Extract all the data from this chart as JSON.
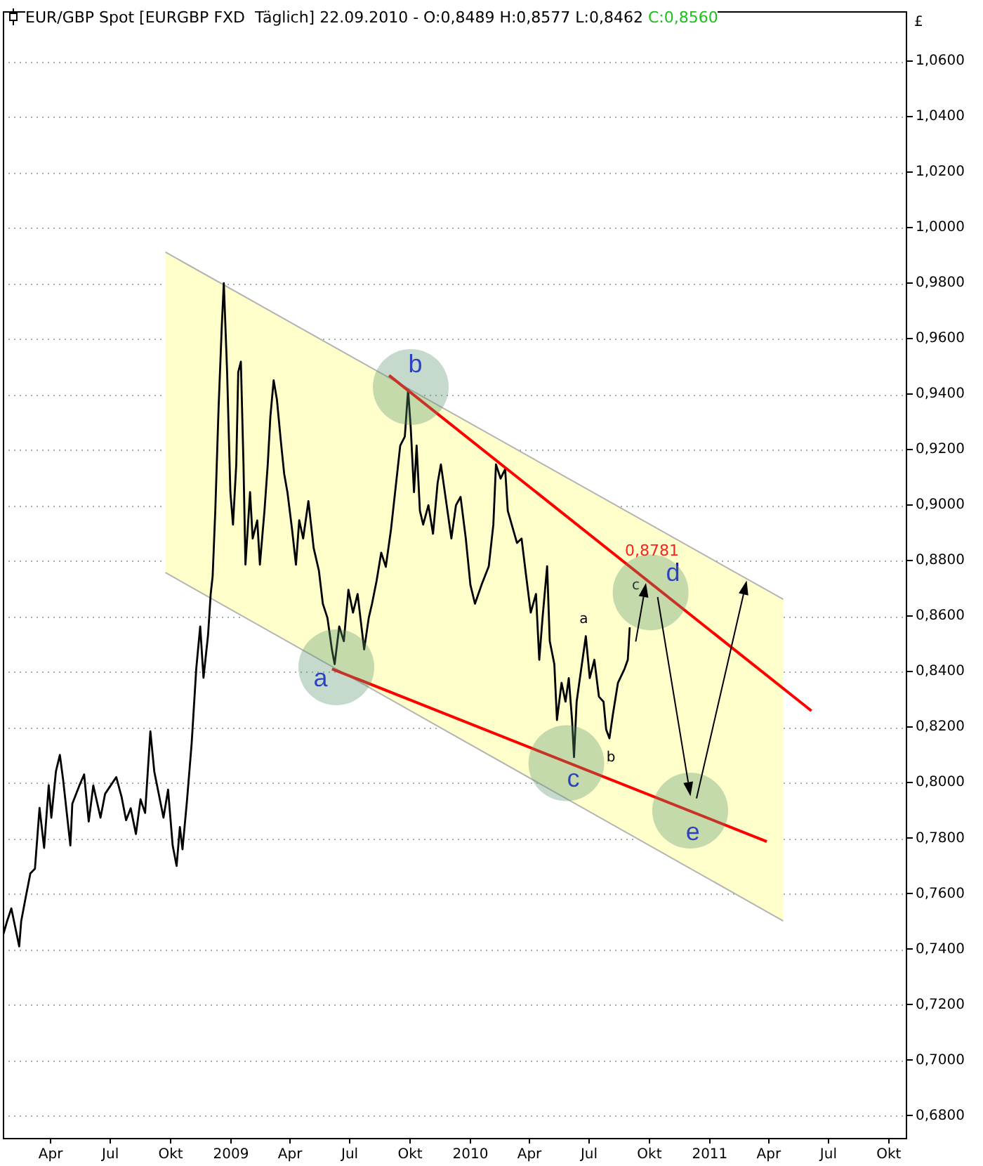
{
  "chart_data": {
    "type": "line",
    "title": "EUR/GBP Spot [EURGBP FXD  Täglich] 22.09.2010 - O:0,8489 H:0,8577 L:0,8462 C:0,8560",
    "ylabel": "£",
    "xlim": [
      "2008-01-19",
      "2011-10-29"
    ],
    "xticks": [
      {
        "value": "2008-04-01",
        "label": "Apr"
      },
      {
        "value": "2008-07-01",
        "label": "Jul"
      },
      {
        "value": "2008-10-01",
        "label": "Okt"
      },
      {
        "value": "2009-01-01",
        "label": "2009"
      },
      {
        "value": "2009-04-01",
        "label": "Apr"
      },
      {
        "value": "2009-07-01",
        "label": "Jul"
      },
      {
        "value": "2009-10-01",
        "label": "Okt"
      },
      {
        "value": "2010-01-01",
        "label": "2010"
      },
      {
        "value": "2010-04-01",
        "label": "Apr"
      },
      {
        "value": "2010-07-01",
        "label": "Jul"
      },
      {
        "value": "2010-10-01",
        "label": "Okt"
      },
      {
        "value": "2011-01-01",
        "label": "2011"
      },
      {
        "value": "2011-04-01",
        "label": "Apr"
      },
      {
        "value": "2011-07-01",
        "label": "Jul"
      },
      {
        "value": "2011-10-01",
        "label": "Okt"
      }
    ],
    "ylim": [
      0.672,
      1.078
    ],
    "yticks": [
      {
        "value": 0.68,
        "label": "0,6800"
      },
      {
        "value": 0.7,
        "label": "0,7000"
      },
      {
        "value": 0.72,
        "label": "0,7200"
      },
      {
        "value": 0.74,
        "label": "0,7400"
      },
      {
        "value": 0.76,
        "label": "0,7600"
      },
      {
        "value": 0.78,
        "label": "0,7800"
      },
      {
        "value": 0.8,
        "label": "0,8000"
      },
      {
        "value": 0.82,
        "label": "0,8200"
      },
      {
        "value": 0.84,
        "label": "0,8400"
      },
      {
        "value": 0.86,
        "label": "0,8600"
      },
      {
        "value": 0.88,
        "label": "0,8800"
      },
      {
        "value": 0.9,
        "label": "0,9000"
      },
      {
        "value": 0.92,
        "label": "0,9200"
      },
      {
        "value": 0.94,
        "label": "0,9400"
      },
      {
        "value": 0.96,
        "label": "0,9600"
      },
      {
        "value": 0.98,
        "label": "0,9800"
      },
      {
        "value": 1.0,
        "label": "1,0000"
      },
      {
        "value": 1.02,
        "label": "1,0200"
      },
      {
        "value": 1.04,
        "label": "1,0400"
      },
      {
        "value": 1.06,
        "label": "1,0600"
      }
    ],
    "grid": "y",
    "series": [
      {
        "color": "#ffffcc",
        "x": [
          "2008-09-23",
          "2011-04-23"
        ],
        "values": [
          null,
          null
        ],
        "lower": [
          0.8757,
          0.7502
        ],
        "upper": [
          0.9912,
          0.8661
        ]
      },
      {
        "color": "#b4b4b4",
        "x": [
          "2008-09-23",
          "2011-04-23"
        ],
        "values": [
          0.9912,
          0.8661
        ]
      },
      {
        "color": "#b4b4b4",
        "x": [
          "2008-09-23",
          "2011-04-23"
        ],
        "values": [
          0.8757,
          0.7502
        ]
      },
      {
        "color": "#000000",
        "x": [
          "2008-01-20",
          "2008-01-25",
          "2008-02-01",
          "2008-02-09",
          "2008-02-13",
          "2008-02-16",
          "2008-02-23",
          "2008-03-01",
          "2008-03-08",
          "2008-03-15",
          "2008-03-22",
          "2008-03-29",
          "2008-04-02",
          "2008-04-09",
          "2008-04-15",
          "2008-04-20",
          "2008-04-27",
          "2008-05-01",
          "2008-05-04",
          "2008-05-15",
          "2008-05-22",
          "2008-05-29",
          "2008-06-05",
          "2008-06-16",
          "2008-06-23",
          "2008-07-10",
          "2008-07-18",
          "2008-07-25",
          "2008-08-01",
          "2008-08-09",
          "2008-08-16",
          "2008-08-23",
          "2008-08-31",
          "2008-09-06",
          "2008-09-20",
          "2008-09-27",
          "2008-10-04",
          "2008-10-10",
          "2008-10-15",
          "2008-10-19",
          "2008-10-26",
          "2008-11-02",
          "2008-11-09",
          "2008-11-15",
          "2008-11-20",
          "2008-11-27",
          "2008-12-01",
          "2008-12-04",
          "2008-12-08",
          "2008-12-13",
          "2008-12-18",
          "2008-12-21",
          "2008-12-26",
          "2008-12-31",
          "2009-01-04",
          "2009-01-09",
          "2009-01-12",
          "2009-01-16",
          "2009-01-20",
          "2009-01-23",
          "2009-01-30",
          "2009-02-03",
          "2009-02-10",
          "2009-02-14",
          "2009-02-21",
          "2009-02-26",
          "2009-03-02",
          "2009-03-07",
          "2009-03-12",
          "2009-03-18",
          "2009-03-23",
          "2009-03-28",
          "2009-04-04",
          "2009-04-10",
          "2009-04-15",
          "2009-04-21",
          "2009-04-29",
          "2009-05-07",
          "2009-05-15",
          "2009-05-21",
          "2009-05-28",
          "2009-06-04",
          "2009-06-08",
          "2009-06-15",
          "2009-06-22",
          "2009-06-29",
          "2009-07-06",
          "2009-07-13",
          "2009-07-23",
          "2009-07-30",
          "2009-08-04",
          "2009-08-11",
          "2009-08-18",
          "2009-08-25",
          "2009-09-02",
          "2009-09-09",
          "2009-09-16",
          "2009-09-23",
          "2009-09-28",
          "2009-10-02",
          "2009-10-07",
          "2009-10-11",
          "2009-10-16",
          "2009-10-21",
          "2009-10-29",
          "2009-11-05",
          "2009-11-12",
          "2009-11-17",
          "2009-11-23",
          "2009-12-03",
          "2009-12-10",
          "2009-12-17",
          "2009-12-25",
          "2010-01-01",
          "2010-01-08",
          "2010-01-18",
          "2010-01-29",
          "2010-02-05",
          "2010-02-09",
          "2010-02-16",
          "2010-02-23",
          "2010-02-27",
          "2010-03-13",
          "2010-03-20",
          "2010-03-27",
          "2010-04-03",
          "2010-04-11",
          "2010-04-16",
          "2010-04-21",
          "2010-04-28",
          "2010-05-02",
          "2010-05-09",
          "2010-05-13",
          "2010-05-20",
          "2010-05-26",
          "2010-05-31",
          "2010-06-05",
          "2010-06-08",
          "2010-06-12",
          "2010-06-17",
          "2010-06-26",
          "2010-07-02",
          "2010-07-09",
          "2010-07-16",
          "2010-07-23",
          "2010-07-27",
          "2010-08-01",
          "2010-08-06",
          "2010-08-14",
          "2010-08-24",
          "2010-08-29",
          "2010-09-01"
        ],
        "values": [
          0.7455,
          0.7497,
          0.7547,
          0.7456,
          0.741,
          0.75,
          0.7588,
          0.7673,
          0.769,
          0.7909,
          0.7765,
          0.7991,
          0.7874,
          0.8041,
          0.81,
          0.801,
          0.786,
          0.7774,
          0.7924,
          0.7991,
          0.803,
          0.786,
          0.799,
          0.7874,
          0.796,
          0.802,
          0.795,
          0.7865,
          0.7908,
          0.7815,
          0.794,
          0.7891,
          0.8185,
          0.804,
          0.7874,
          0.7975,
          0.7774,
          0.77,
          0.784,
          0.776,
          0.794,
          0.8143,
          0.8412,
          0.8563,
          0.8378,
          0.8533,
          0.868,
          0.8745,
          0.898,
          0.935,
          0.965,
          0.98,
          0.9482,
          0.9047,
          0.893,
          0.9147,
          0.948,
          0.9517,
          0.9147,
          0.8786,
          0.9047,
          0.888,
          0.8945,
          0.8786,
          0.898,
          0.9147,
          0.932,
          0.945,
          0.938,
          0.923,
          0.9114,
          0.9047,
          0.8914,
          0.8786,
          0.8946,
          0.888,
          0.9015,
          0.8846,
          0.8764,
          0.8645,
          0.8594,
          0.8477,
          0.8427,
          0.8563,
          0.851,
          0.8695,
          0.8613,
          0.868,
          0.848,
          0.8594,
          0.8645,
          0.8728,
          0.8829,
          0.8778,
          0.8914,
          0.9064,
          0.9215,
          0.9247,
          0.9416,
          0.928,
          0.9047,
          0.9215,
          0.898,
          0.893,
          0.9,
          0.8897,
          0.908,
          0.9147,
          0.9047,
          0.888,
          0.9,
          0.903,
          0.888,
          0.8713,
          0.8645,
          0.8713,
          0.878,
          0.893,
          0.9147,
          0.9096,
          0.913,
          0.898,
          0.8864,
          0.888,
          0.8745,
          0.8613,
          0.868,
          0.8443,
          0.8594,
          0.878,
          0.851,
          0.8427,
          0.8226,
          0.836,
          0.8292,
          0.8377,
          0.8226,
          0.8092,
          0.8292,
          0.8377,
          0.8528,
          0.8377,
          0.8443,
          0.831,
          0.8292,
          0.8192,
          0.816,
          0.8242,
          0.836,
          0.841,
          0.8443,
          0.856
        ]
      },
      {
        "color": "#ff0000",
        "x": [
          "2009-08-30",
          "2011-06-05"
        ],
        "values": [
          0.9468,
          0.8259
        ]
      },
      {
        "color": "#ff0000",
        "x": [
          "2009-06-04",
          "2011-03-29"
        ],
        "values": [
          0.841,
          0.7788
        ]
      }
    ],
    "annotations": [
      "a",
      "b",
      "c",
      "d",
      {
        "text": "e",
        "x": "2010-12-02",
        "y": 0.79
      },
      "a",
      "b",
      "c",
      "0,8781"
    ]
  }
}
